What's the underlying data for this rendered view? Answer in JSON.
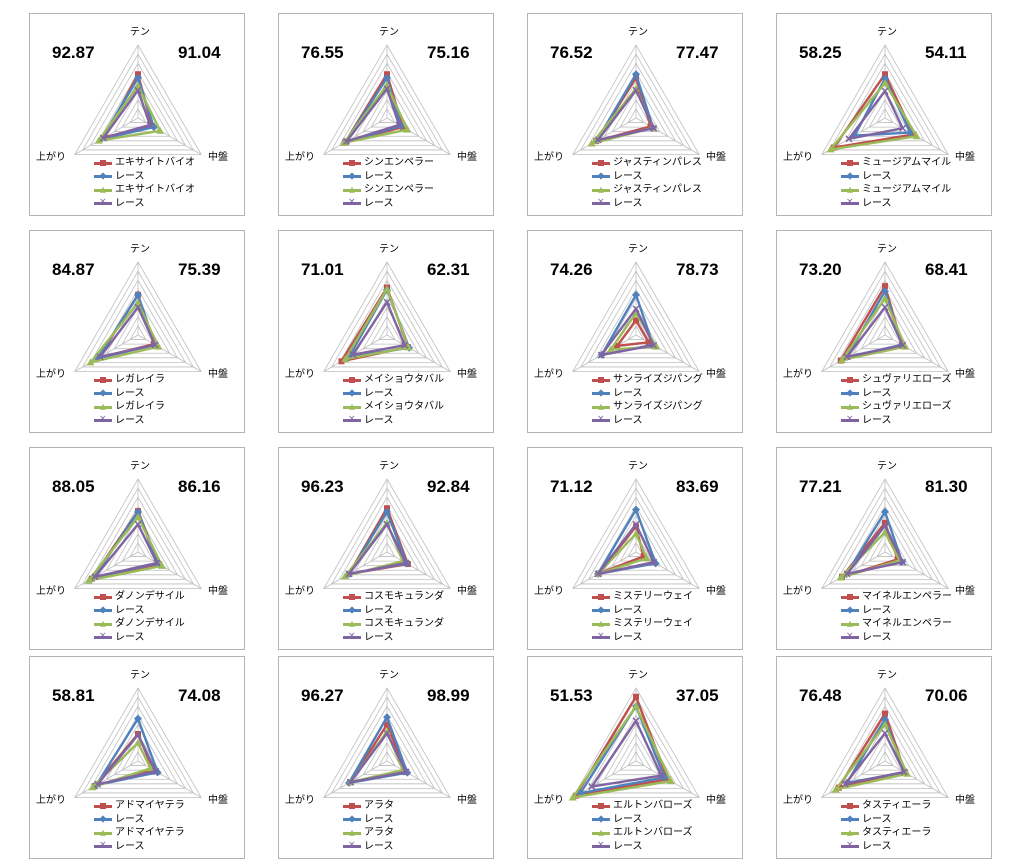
{
  "axes": [
    "テン",
    "中盤",
    "上がり"
  ],
  "series_colors": [
    "#c0504d",
    "#4f81bd",
    "#9bbb59",
    "#8064a2"
  ],
  "series_markers": [
    "square",
    "diamond",
    "triangle",
    "x"
  ],
  "chart_data": [
    {
      "type": "radar",
      "score_left": "92.87",
      "score_right": "91.04",
      "legend": [
        "エキサイトバイオ",
        "レース",
        "エキサイトバイオ",
        "レース"
      ],
      "series": [
        {
          "name": "エキサイトバイオ",
          "values": [
            60,
            22,
            53
          ]
        },
        {
          "name": "レース",
          "values": [
            55,
            25,
            58
          ]
        },
        {
          "name": "エキサイトバイオ",
          "values": [
            44,
            35,
            62
          ]
        },
        {
          "name": "レース",
          "values": [
            38,
            19,
            55
          ]
        }
      ]
    },
    {
      "type": "radar",
      "score_left": "76.55",
      "score_right": "75.16",
      "legend": [
        "シンエンペラー",
        "レース",
        "シンエンペラー",
        "レース"
      ],
      "series": [
        {
          "name": "シンエンペラー",
          "values": [
            60,
            25,
            66
          ]
        },
        {
          "name": "レース",
          "values": [
            55,
            22,
            66
          ]
        },
        {
          "name": "シンエンペラー",
          "values": [
            45,
            32,
            68
          ]
        },
        {
          "name": "レース",
          "values": [
            40,
            19,
            64
          ]
        }
      ]
    },
    {
      "type": "radar",
      "score_left": "76.52",
      "score_right": "77.47",
      "legend": [
        "ジャスティンパレス",
        "レース",
        "ジャスティンパレス",
        "レース"
      ],
      "series": [
        {
          "name": "ジャスティンパレス",
          "values": [
            55,
            23,
            63
          ]
        },
        {
          "name": "レース",
          "values": [
            60,
            27,
            62
          ]
        },
        {
          "name": "ジャスティンパレス",
          "values": [
            40,
            27,
            70
          ]
        },
        {
          "name": "レース",
          "values": [
            38,
            28,
            60
          ]
        }
      ]
    },
    {
      "type": "radar",
      "score_left": "58.25",
      "score_right": "54.11",
      "legend": [
        "ミュージアムマイル",
        "レース",
        "ミュージアムマイル",
        "レース"
      ],
      "series": [
        {
          "name": "ミュージアムマイル",
          "values": [
            60,
            45,
            81
          ]
        },
        {
          "name": "レース",
          "values": [
            54,
            40,
            48
          ]
        },
        {
          "name": "ミュージアムマイル",
          "values": [
            48,
            50,
            86
          ]
        },
        {
          "name": "レース",
          "values": [
            37,
            28,
            57
          ]
        }
      ]
    },
    {
      "type": "radar",
      "score_left": "84.87",
      "score_right": "75.39",
      "legend": [
        "レガレイラ",
        "レース",
        "レガレイラ",
        "レース"
      ],
      "series": [
        {
          "name": "レガレイラ",
          "values": [
            55,
            25,
            62
          ]
        },
        {
          "name": "レース",
          "values": [
            55,
            27,
            64
          ]
        },
        {
          "name": "レガレイラ",
          "values": [
            44,
            32,
            75
          ]
        },
        {
          "name": "レース",
          "values": [
            38,
            27,
            60
          ]
        }
      ]
    },
    {
      "type": "radar",
      "score_left": "71.01",
      "score_right": "62.31",
      "legend": [
        "メイショウタバル",
        "レース",
        "メイショウタバル",
        "レース"
      ],
      "series": [
        {
          "name": "メイショウタバル",
          "values": [
            65,
            33,
            72
          ]
        },
        {
          "name": "レース",
          "values": [
            62,
            35,
            60
          ]
        },
        {
          "name": "メイショウタバル",
          "values": [
            63,
            34,
            66
          ]
        },
        {
          "name": "レース",
          "values": [
            45,
            28,
            54
          ]
        }
      ]
    },
    {
      "type": "radar",
      "score_left": "74.26",
      "score_right": "78.73",
      "legend": [
        "サンライズジパング",
        "レース",
        "サンライズジパング",
        "レース"
      ],
      "series": [
        {
          "name": "サンライズジパング",
          "values": [
            20,
            20,
            30
          ]
        },
        {
          "name": "レース",
          "values": [
            55,
            27,
            54
          ]
        },
        {
          "name": "サンライズジパング",
          "values": [
            30,
            32,
            40
          ]
        },
        {
          "name": "レース",
          "values": [
            36,
            28,
            55
          ]
        }
      ]
    },
    {
      "type": "radar",
      "score_left": "73.20",
      "score_right": "68.41",
      "legend": [
        "シュヴァリエローズ",
        "レース",
        "シュヴァリエローズ",
        "レース"
      ],
      "series": [
        {
          "name": "シュヴァリエローズ",
          "values": [
            67,
            27,
            70
          ]
        },
        {
          "name": "レース",
          "values": [
            60,
            27,
            60
          ]
        },
        {
          "name": "シュヴァリエローズ",
          "values": [
            50,
            32,
            68
          ]
        },
        {
          "name": "レース",
          "values": [
            38,
            28,
            60
          ]
        }
      ]
    },
    {
      "type": "radar",
      "score_left": "88.05",
      "score_right": "86.16",
      "legend": [
        "ダノンデサイル",
        "レース",
        "ダノンデサイル",
        "レース"
      ],
      "series": [
        {
          "name": "ダノンデサイル",
          "values": [
            56,
            33,
            73
          ]
        },
        {
          "name": "レース",
          "values": [
            55,
            31,
            70
          ]
        },
        {
          "name": "ダノンデサイル",
          "values": [
            48,
            38,
            78
          ]
        },
        {
          "name": "レース",
          "values": [
            38,
            30,
            68
          ]
        }
      ]
    },
    {
      "type": "radar",
      "score_left": "96.23",
      "score_right": "92.84",
      "legend": [
        "コスモキュランダ",
        "レース",
        "コスモキュランダ",
        "レース"
      ],
      "series": [
        {
          "name": "コスモキュランダ",
          "values": [
            60,
            33,
            60
          ]
        },
        {
          "name": "レース",
          "values": [
            55,
            31,
            60
          ]
        },
        {
          "name": "コスモキュランダ",
          "values": [
            40,
            25,
            66
          ]
        },
        {
          "name": "レース",
          "values": [
            38,
            30,
            60
          ]
        }
      ]
    },
    {
      "type": "radar",
      "score_left": "71.12",
      "score_right": "83.69",
      "legend": [
        "ミステリーウェイ",
        "レース",
        "ミステリーウェイ",
        "レース"
      ],
      "series": [
        {
          "name": "ミステリーウェイ",
          "values": [
            35,
            12,
            59
          ]
        },
        {
          "name": "レース",
          "values": [
            58,
            31,
            60
          ]
        },
        {
          "name": "ミステリーウェイ",
          "values": [
            25,
            17,
            60
          ]
        },
        {
          "name": "レース",
          "values": [
            38,
            28,
            60
          ]
        }
      ]
    },
    {
      "type": "radar",
      "score_left": "77.21",
      "score_right": "81.30",
      "legend": [
        "マイネルエンペラー",
        "レース",
        "マイネルエンペラー",
        "レース"
      ],
      "series": [
        {
          "name": "マイネルエンペラー",
          "values": [
            40,
            20,
            68
          ]
        },
        {
          "name": "レース",
          "values": [
            55,
            27,
            61
          ]
        },
        {
          "name": "マイネルエンペラー",
          "values": [
            27,
            23,
            70
          ]
        },
        {
          "name": "レース",
          "values": [
            36,
            28,
            60
          ]
        }
      ]
    },
    {
      "type": "radar",
      "score_left": "58.81",
      "score_right": "74.08",
      "legend": [
        "アドマイヤテラ",
        "レース",
        "アドマイヤテラ",
        "レース"
      ],
      "series": [
        {
          "name": "アドマイヤテラ",
          "values": [
            37,
            24,
            69
          ]
        },
        {
          "name": "レース",
          "values": [
            58,
            31,
            66
          ]
        },
        {
          "name": "アドマイヤテラ",
          "values": [
            25,
            20,
            72
          ]
        },
        {
          "name": "レース",
          "values": [
            36,
            28,
            64
          ]
        }
      ]
    },
    {
      "type": "radar",
      "score_left": "96.27",
      "score_right": "98.99",
      "legend": [
        "アラタ",
        "レース",
        "アラタ",
        "レース"
      ],
      "series": [
        {
          "name": "アラタ",
          "values": [
            50,
            30,
            58
          ]
        },
        {
          "name": "レース",
          "values": [
            60,
            32,
            60
          ]
        },
        {
          "name": "アラタ",
          "values": [
            40,
            25,
            58
          ]
        },
        {
          "name": "レース",
          "values": [
            38,
            30,
            58
          ]
        }
      ]
    },
    {
      "type": "radar",
      "score_left": "51.53",
      "score_right": "37.05",
      "legend": [
        "エルトンバローズ",
        "レース",
        "エルトンバローズ",
        "レース"
      ],
      "series": [
        {
          "name": "エルトンバローズ",
          "values": [
            88,
            50,
            95
          ]
        },
        {
          "name": "レース",
          "values": [
            75,
            45,
            88
          ]
        },
        {
          "name": "エルトンバローズ",
          "values": [
            75,
            55,
            100
          ]
        },
        {
          "name": "レース",
          "values": [
            55,
            40,
            70
          ]
        }
      ]
    },
    {
      "type": "radar",
      "score_left": "76.48",
      "score_right": "70.06",
      "legend": [
        "タスティエーラ",
        "レース",
        "タスティエーラ",
        "レース"
      ],
      "series": [
        {
          "name": "タスティエーラ",
          "values": [
            65,
            32,
            73
          ]
        },
        {
          "name": "レース",
          "values": [
            57,
            31,
            60
          ]
        },
        {
          "name": "タスティエーラ",
          "values": [
            50,
            35,
            78
          ]
        },
        {
          "name": "レース",
          "values": [
            38,
            30,
            63
          ]
        }
      ]
    }
  ]
}
